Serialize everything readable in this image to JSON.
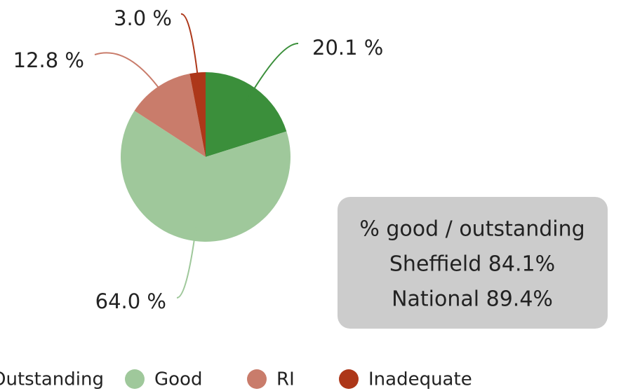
{
  "chart_data": {
    "type": "pie",
    "categories": [
      "Outstanding",
      "Good",
      "RI",
      "Inadequate"
    ],
    "values": [
      20.1,
      64.0,
      12.8,
      3.0
    ],
    "value_labels": [
      "20.1 %",
      "64.0 %",
      "12.8 %",
      "3.0 %"
    ],
    "colors": [
      "#3b8f3b",
      "#9fc89b",
      "#c97c6b",
      "#ad3719"
    ],
    "annotation": [
      "% good / outstanding",
      "Sheffield 84.1%",
      "National 89.4%"
    ],
    "legend": "bottom"
  }
}
